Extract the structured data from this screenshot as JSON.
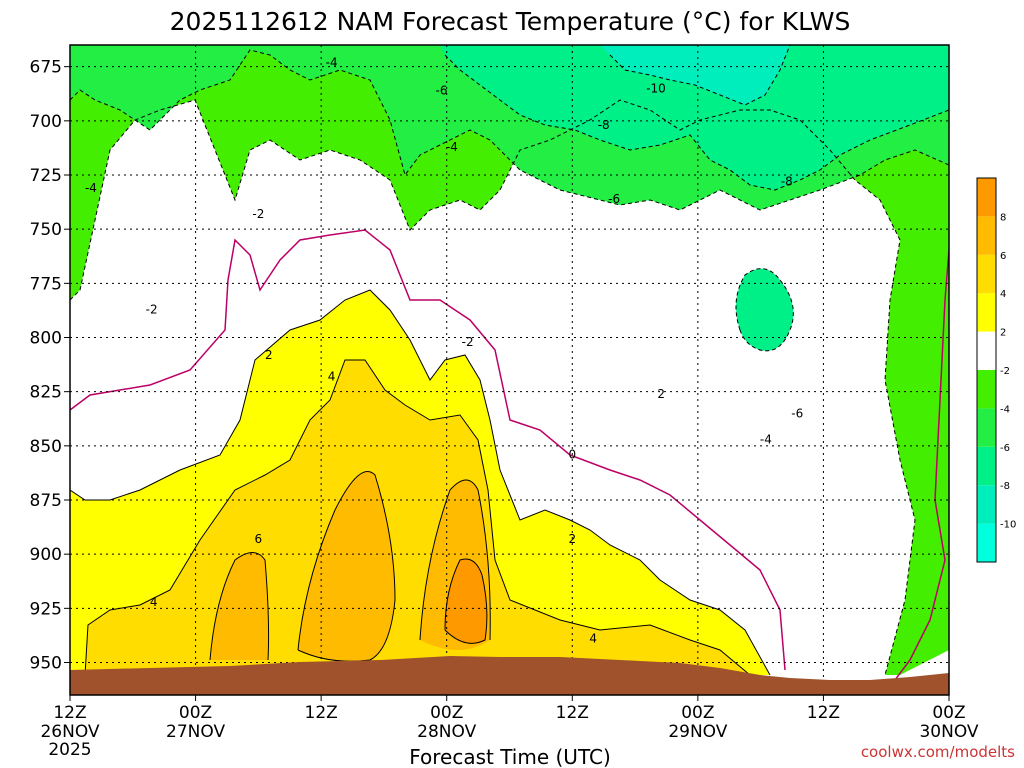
{
  "title": "2025112612 NAM Forecast Temperature (°C) for KLWS",
  "xlabel": "Forecast Time (UTC)",
  "credit": "coolwx.com/modelts",
  "chart_data": {
    "type": "heatmap",
    "title": "2025112612 NAM Forecast Temperature (°C) for KLWS",
    "xlabel": "Forecast Time (UTC)",
    "ylabel": "",
    "x_hours": [
      0,
      84
    ],
    "y_pressure_mb": [
      965,
      665
    ],
    "x_ticks": [
      {
        "h": 0,
        "time": "12Z",
        "date": "26NOV",
        "year": "2025"
      },
      {
        "h": 12,
        "time": "00Z",
        "date": "27NOV",
        "year": ""
      },
      {
        "h": 24,
        "time": "12Z",
        "date": "",
        "year": ""
      },
      {
        "h": 36,
        "time": "00Z",
        "date": "28NOV",
        "year": ""
      },
      {
        "h": 48,
        "time": "12Z",
        "date": "",
        "year": ""
      },
      {
        "h": 60,
        "time": "00Z",
        "date": "29NOV",
        "year": ""
      },
      {
        "h": 72,
        "time": "12Z",
        "date": "",
        "year": ""
      },
      {
        "h": 84,
        "time": "00Z",
        "date": "30NOV",
        "year": ""
      }
    ],
    "y_ticks": [
      "675",
      "700",
      "725",
      "750",
      "775",
      "800",
      "825",
      "850",
      "875",
      "900",
      "925",
      "950"
    ],
    "colorbar": [
      {
        "label": "",
        "color": "#00ffdd"
      },
      {
        "label": "-10",
        "color": "#00eebb"
      },
      {
        "label": "-8",
        "color": "#00f088"
      },
      {
        "label": "-6",
        "color": "#22ee44"
      },
      {
        "label": "-4",
        "color": "#44ee00"
      },
      {
        "label": "-2",
        "color": "#ffffff"
      },
      {
        "label": "2",
        "color": "#ffff00"
      },
      {
        "label": "4",
        "color": "#ffdd00"
      },
      {
        "label": "6",
        "color": "#ffbb00"
      },
      {
        "label": "8",
        "color": "#ff9900"
      }
    ],
    "contour_labels": [
      {
        "text": "-4",
        "h": 25.0,
        "p": 673
      },
      {
        "text": "-6",
        "h": 35.5,
        "p": 686
      },
      {
        "text": "-10",
        "h": 56.0,
        "p": 685
      },
      {
        "text": "-8",
        "h": 51.0,
        "p": 702
      },
      {
        "text": "-4",
        "h": 36.5,
        "p": 712
      },
      {
        "text": "-4",
        "h": 2.0,
        "p": 731
      },
      {
        "text": "-6",
        "h": 52.0,
        "p": 736
      },
      {
        "text": "-8",
        "h": 68.5,
        "p": 728
      },
      {
        "text": "-2",
        "h": 18.0,
        "p": 743
      },
      {
        "text": "-2",
        "h": 7.8,
        "p": 787
      },
      {
        "text": "-2",
        "h": 38.0,
        "p": 802
      },
      {
        "text": "2",
        "h": 19.0,
        "p": 808
      },
      {
        "text": "4",
        "h": 25.0,
        "p": 818
      },
      {
        "text": "2",
        "h": 56.5,
        "p": 826
      },
      {
        "text": "-6",
        "h": 69.5,
        "p": 835
      },
      {
        "text": "-4",
        "h": 66.5,
        "p": 847
      },
      {
        "text": "0",
        "h": 48.0,
        "p": 854
      },
      {
        "text": "6",
        "h": 18.0,
        "p": 893
      },
      {
        "text": "2",
        "h": 48.0,
        "p": 893
      },
      {
        "text": "4",
        "h": 8.0,
        "p": 922
      },
      {
        "text": "4",
        "h": 50.0,
        "p": 939
      }
    ]
  }
}
